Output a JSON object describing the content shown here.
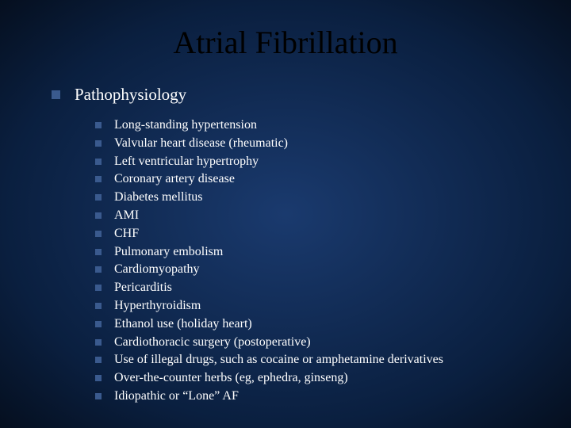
{
  "slide": {
    "title": "Atrial Fibrillation",
    "section_heading": "Pathophysiology",
    "items": [
      "Long-standing hypertension",
      "Valvular heart disease (rheumatic)",
      "Left ventricular hypertrophy",
      "Coronary artery disease",
      "Diabetes mellitus",
      "AMI",
      "CHF",
      "Pulmonary embolism",
      "Cardiomyopathy",
      "Pericarditis",
      "Hyperthyroidism",
      "Ethanol use (holiday heart)",
      "Cardiothoracic surgery (postoperative)",
      "Use of illegal drugs, such as cocaine or amphetamine derivatives",
      "Over-the-counter herbs (eg, ephedra, ginseng)",
      "Idiopathic or “Lone” AF"
    ]
  },
  "style": {
    "background_gradient_center": "#1a3a6e",
    "background_gradient_edge": "#050f1f",
    "title_color": "#000000",
    "title_fontsize": 40,
    "body_text_color": "#ffffff",
    "bullet_color": "#3a5a8e",
    "level1_fontsize": 21,
    "level2_fontsize": 16,
    "font_family": "Times New Roman"
  }
}
